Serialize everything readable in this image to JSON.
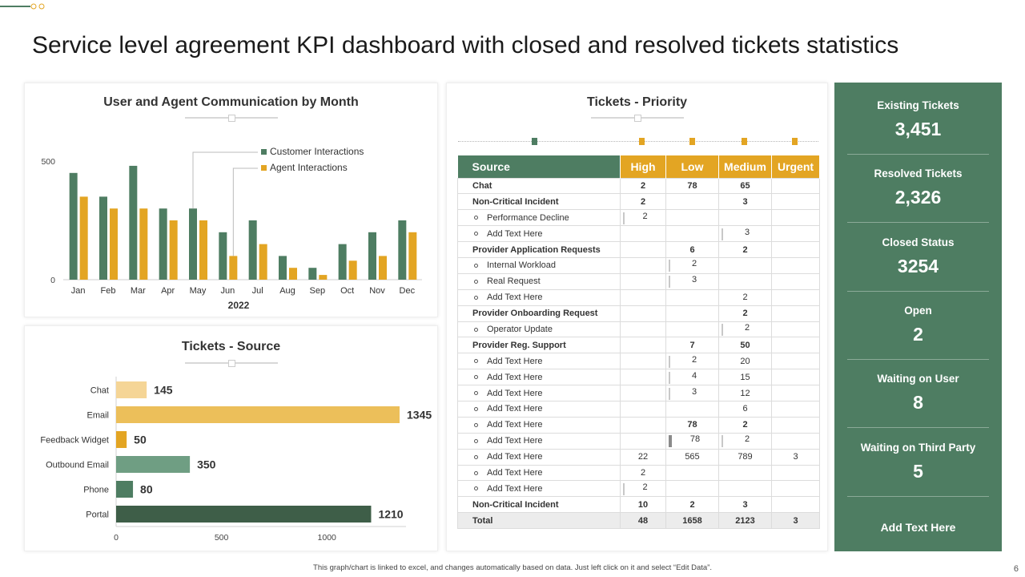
{
  "page": {
    "title": "Service level agreement KPI dashboard with closed and resolved tickets statistics",
    "footnote": "This graph/chart is linked to excel, and changes automatically based on data. Just left click on it and select “Edit Data”.",
    "page_number": "6"
  },
  "colors": {
    "green": "#4e7d62",
    "gold": "#e3a523",
    "light_gold": "#f5d596",
    "mid_gold": "#ecbf5a",
    "sage": "#6f9e83",
    "dark_green": "#3e5e48"
  },
  "chart_data": [
    {
      "type": "bar",
      "title": "User and Agent Communication by Month",
      "xlabel": "2022",
      "ylabel": "",
      "categories": [
        "Jan",
        "Feb",
        "Mar",
        "Apr",
        "May",
        "Jun",
        "Jul",
        "Aug",
        "Sep",
        "Oct",
        "Nov",
        "Dec"
      ],
      "series": [
        {
          "name": "Customer Interactions",
          "values": [
            450,
            350,
            480,
            300,
            300,
            200,
            250,
            100,
            50,
            150,
            200,
            250
          ]
        },
        {
          "name": "Agent Interactions",
          "values": [
            350,
            300,
            300,
            250,
            250,
            100,
            150,
            50,
            20,
            80,
            100,
            200
          ]
        }
      ],
      "ylim": [
        0,
        500
      ],
      "yticks": [
        "0",
        "500"
      ],
      "legend": "top-right"
    },
    {
      "type": "bar",
      "orientation": "horizontal",
      "title": "Tickets - Source",
      "categories": [
        "Chat",
        "Email",
        "Feedback Widget",
        "Outbound Email",
        "Phone",
        "Portal"
      ],
      "values": [
        145,
        1345,
        50,
        350,
        80,
        1210
      ],
      "value_labels": [
        "145",
        "1345",
        "50",
        "350",
        "80",
        "1210"
      ],
      "xlim": [
        0,
        1400
      ],
      "xticks": [
        "0",
        "500",
        "1000"
      ]
    }
  ],
  "priority": {
    "title": "Tickets - Priority",
    "headers": [
      "Source",
      "High",
      "Low",
      "Medium",
      "Urgent"
    ],
    "rows": [
      {
        "label": "Chat",
        "bold": true,
        "sub": false,
        "high": "2",
        "low": "78",
        "medium": "65",
        "urgent": ""
      },
      {
        "label": "Non-Critical Incident",
        "bold": true,
        "sub": false,
        "high": "2",
        "low": "",
        "medium": "3",
        "urgent": ""
      },
      {
        "label": "Performance Decline",
        "bold": false,
        "sub": true,
        "high": "2",
        "low": "",
        "medium": "",
        "urgent": ""
      },
      {
        "label": "Add Text Here",
        "bold": false,
        "sub": true,
        "high": "",
        "low": "",
        "medium": "3",
        "urgent": ""
      },
      {
        "label": "Provider Application Requests",
        "bold": true,
        "sub": false,
        "high": "",
        "low": "6",
        "medium": "2",
        "urgent": ""
      },
      {
        "label": "Internal Workload",
        "bold": false,
        "sub": true,
        "high": "",
        "low": "2",
        "medium": "",
        "urgent": ""
      },
      {
        "label": "Real Request",
        "bold": false,
        "sub": true,
        "high": "",
        "low": "3",
        "medium": "",
        "urgent": ""
      },
      {
        "label": "Add Text Here",
        "bold": false,
        "sub": true,
        "high": "",
        "low": "",
        "medium": "2",
        "urgent": ""
      },
      {
        "label": "Provider Onboarding Request",
        "bold": true,
        "sub": false,
        "high": "",
        "low": "",
        "medium": "2",
        "urgent": ""
      },
      {
        "label": "Operator Update",
        "bold": false,
        "sub": true,
        "high": "",
        "low": "",
        "medium": "2",
        "urgent": ""
      },
      {
        "label": "Provider Reg. Support",
        "bold": true,
        "sub": false,
        "high": "",
        "low": "7",
        "medium": "50",
        "urgent": ""
      },
      {
        "label": "Add Text Here",
        "bold": false,
        "sub": true,
        "high": "",
        "low": "2",
        "medium": "20",
        "urgent": ""
      },
      {
        "label": "Add Text Here",
        "bold": false,
        "sub": true,
        "high": "",
        "low": "4",
        "medium": "15",
        "urgent": ""
      },
      {
        "label": "Add Text Here",
        "bold": false,
        "sub": true,
        "high": "",
        "low": "3",
        "medium": "12",
        "urgent": ""
      },
      {
        "label": "Add Text Here",
        "bold": false,
        "sub": true,
        "high": "",
        "low": "",
        "medium": "6",
        "urgent": ""
      },
      {
        "label": "Add Text Here",
        "bold": false,
        "sub": true,
        "high": "",
        "low": "78",
        "medium": "2",
        "urgent": "",
        "bold_values": true
      },
      {
        "label": "Add Text Here",
        "bold": false,
        "sub": true,
        "high": "",
        "low": "78",
        "medium": "2",
        "urgent": ""
      },
      {
        "label": "Add Text Here",
        "bold": false,
        "sub": true,
        "high": "22",
        "low": "565",
        "medium": "789",
        "urgent": "3"
      },
      {
        "label": "Add Text Here",
        "bold": false,
        "sub": true,
        "high": "2",
        "low": "",
        "medium": "",
        "urgent": ""
      },
      {
        "label": "Add Text Here",
        "bold": false,
        "sub": true,
        "high": "2",
        "low": "",
        "medium": "",
        "urgent": ""
      },
      {
        "label": "Non-Critical Incident",
        "bold": true,
        "sub": false,
        "high": "10",
        "low": "2",
        "medium": "3",
        "urgent": ""
      }
    ],
    "total": {
      "label": "Total",
      "high": "48",
      "low": "1658",
      "medium": "2123",
      "urgent": "3"
    }
  },
  "kpis": [
    {
      "label": "Existing Tickets",
      "value": "3,451"
    },
    {
      "label": "Resolved Tickets",
      "value": "2,326"
    },
    {
      "label": "Closed Status",
      "value": "3254"
    },
    {
      "label": "Open",
      "value": "2"
    },
    {
      "label": "Waiting on User",
      "value": "8"
    },
    {
      "label": "Waiting on Third Party",
      "value": "5"
    }
  ],
  "kpi_footer": "Add Text Here"
}
